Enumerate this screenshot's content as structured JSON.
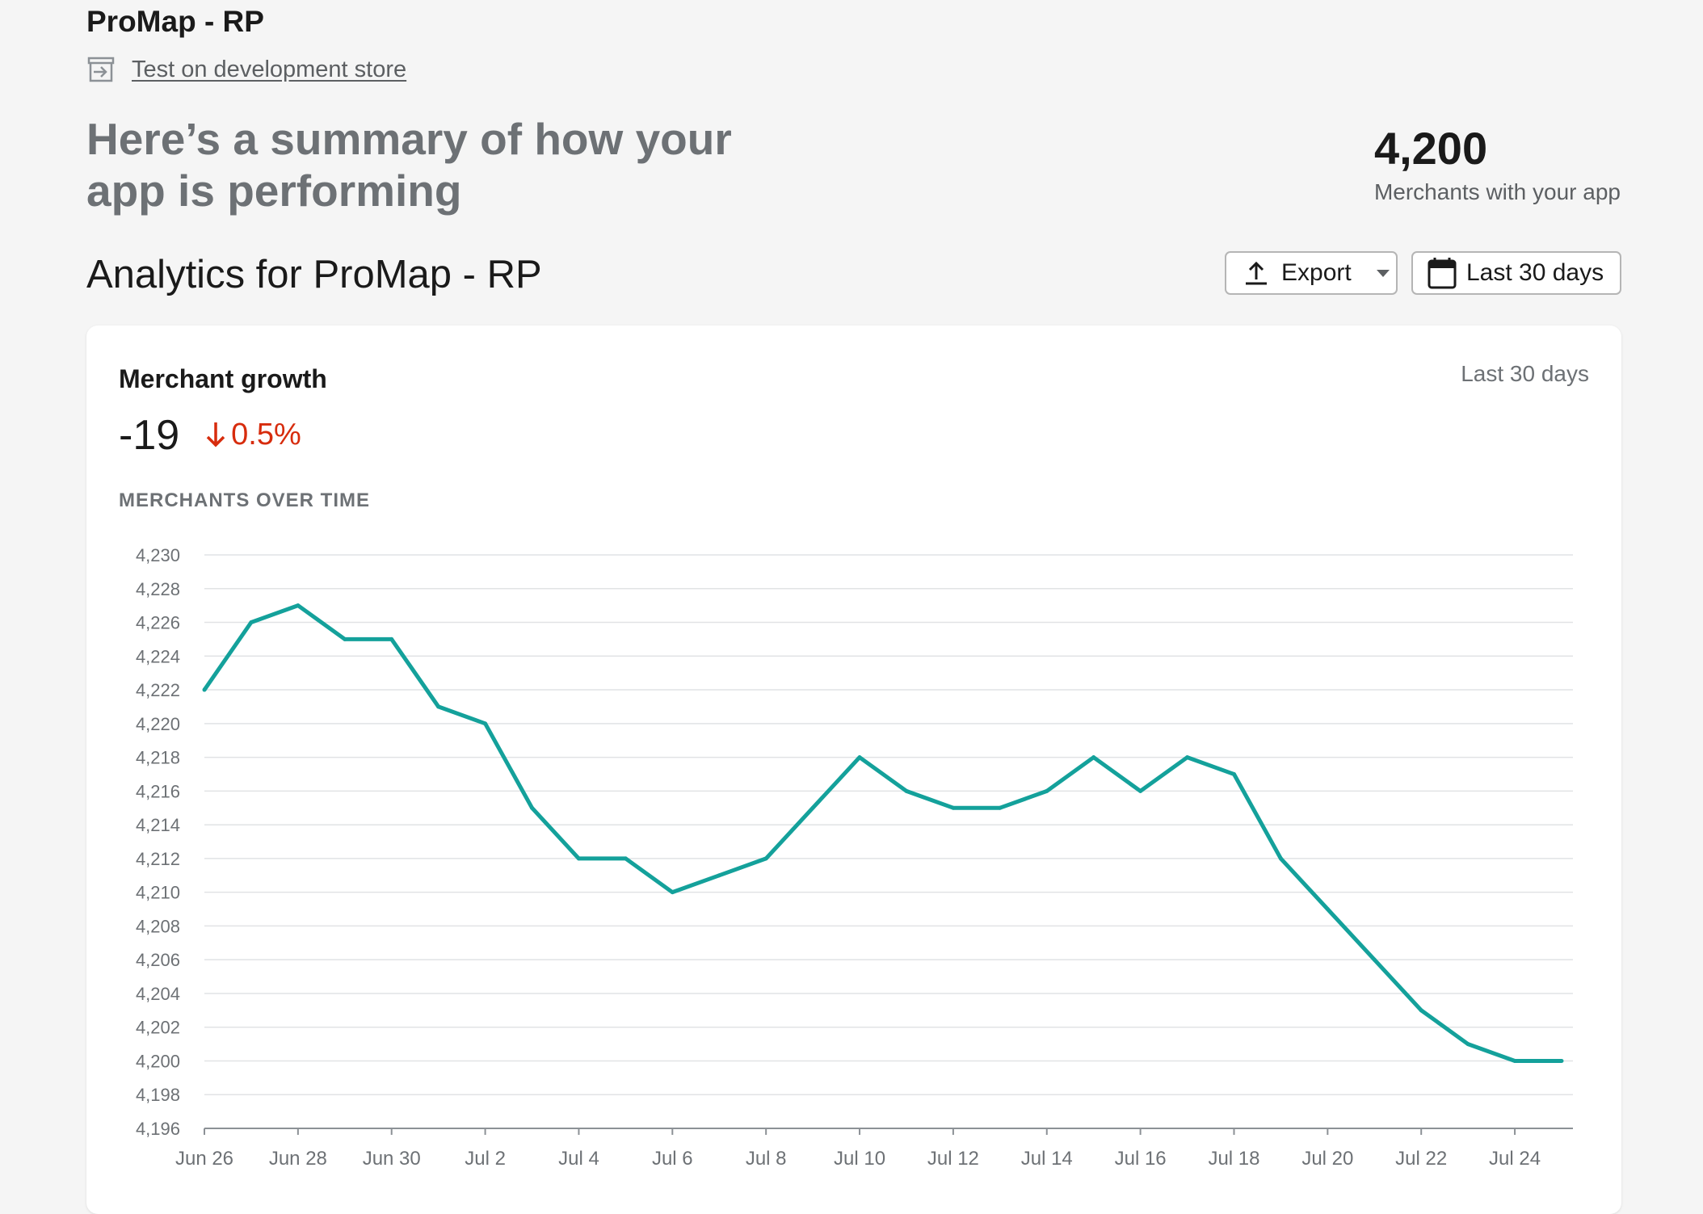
{
  "app": {
    "title": "ProMap - RP",
    "dev_store_link": "Test on development store",
    "summary": "Here’s a summary of how your app is performing",
    "merchants_count": "4,200",
    "merchants_label": "Merchants with your app"
  },
  "analytics": {
    "title": "Analytics for ProMap - RP",
    "export_label": "Export",
    "date_range_label": "Last 30 days"
  },
  "card": {
    "title": "Merchant growth",
    "period": "Last 30 days",
    "metric_value": "-19",
    "metric_change": "0.5%",
    "chart_label": "MERCHANTS OVER TIME"
  },
  "colors": {
    "line": "#14a19b",
    "negative": "#d72c0d",
    "grid": "#e1e3e5",
    "axis_text": "#6d7175"
  },
  "icons": {
    "dev_store": "store-arrow-icon",
    "export": "upload-icon",
    "dropdown": "caret-down-icon",
    "calendar": "calendar-icon",
    "change": "arrow-down-icon"
  },
  "chart_data": {
    "type": "line",
    "title": "MERCHANTS OVER TIME",
    "xlabel": "",
    "ylabel": "",
    "ylim": [
      4196,
      4230
    ],
    "yticks": [
      4196,
      4198,
      4200,
      4202,
      4204,
      4206,
      4208,
      4210,
      4212,
      4214,
      4216,
      4218,
      4220,
      4222,
      4224,
      4226,
      4228,
      4230
    ],
    "ytick_labels": [
      "4,196",
      "4,198",
      "4,200",
      "4,202",
      "4,204",
      "4,206",
      "4,208",
      "4,210",
      "4,212",
      "4,214",
      "4,216",
      "4,218",
      "4,220",
      "4,222",
      "4,224",
      "4,226",
      "4,228",
      "4,230"
    ],
    "x": [
      "Jun 26",
      "Jun 27",
      "Jun 28",
      "Jun 29",
      "Jun 30",
      "Jul 1",
      "Jul 2",
      "Jul 3",
      "Jul 4",
      "Jul 5",
      "Jul 6",
      "Jul 7",
      "Jul 8",
      "Jul 9",
      "Jul 10",
      "Jul 11",
      "Jul 12",
      "Jul 13",
      "Jul 14",
      "Jul 15",
      "Jul 16",
      "Jul 17",
      "Jul 18",
      "Jul 19",
      "Jul 20",
      "Jul 21",
      "Jul 22",
      "Jul 23",
      "Jul 24",
      "Jul 25"
    ],
    "xtick_labels": [
      "Jun 26",
      "Jun 28",
      "Jun 30",
      "Jul 2",
      "Jul 4",
      "Jul 6",
      "Jul 8",
      "Jul 10",
      "Jul 12",
      "Jul 14",
      "Jul 16",
      "Jul 18",
      "Jul 20",
      "Jul 22",
      "Jul 24"
    ],
    "series": [
      {
        "name": "Merchants",
        "values": [
          4222,
          4226,
          4227,
          4225,
          4225,
          4221,
          4220,
          4215,
          4212,
          4212,
          4210,
          4211,
          4212,
          4215,
          4218,
          4216,
          4215,
          4215,
          4216,
          4218,
          4216,
          4218,
          4217,
          4212,
          4209,
          4206,
          4203,
          4201,
          4200,
          4200
        ]
      }
    ],
    "grid": true,
    "legend": "none"
  }
}
